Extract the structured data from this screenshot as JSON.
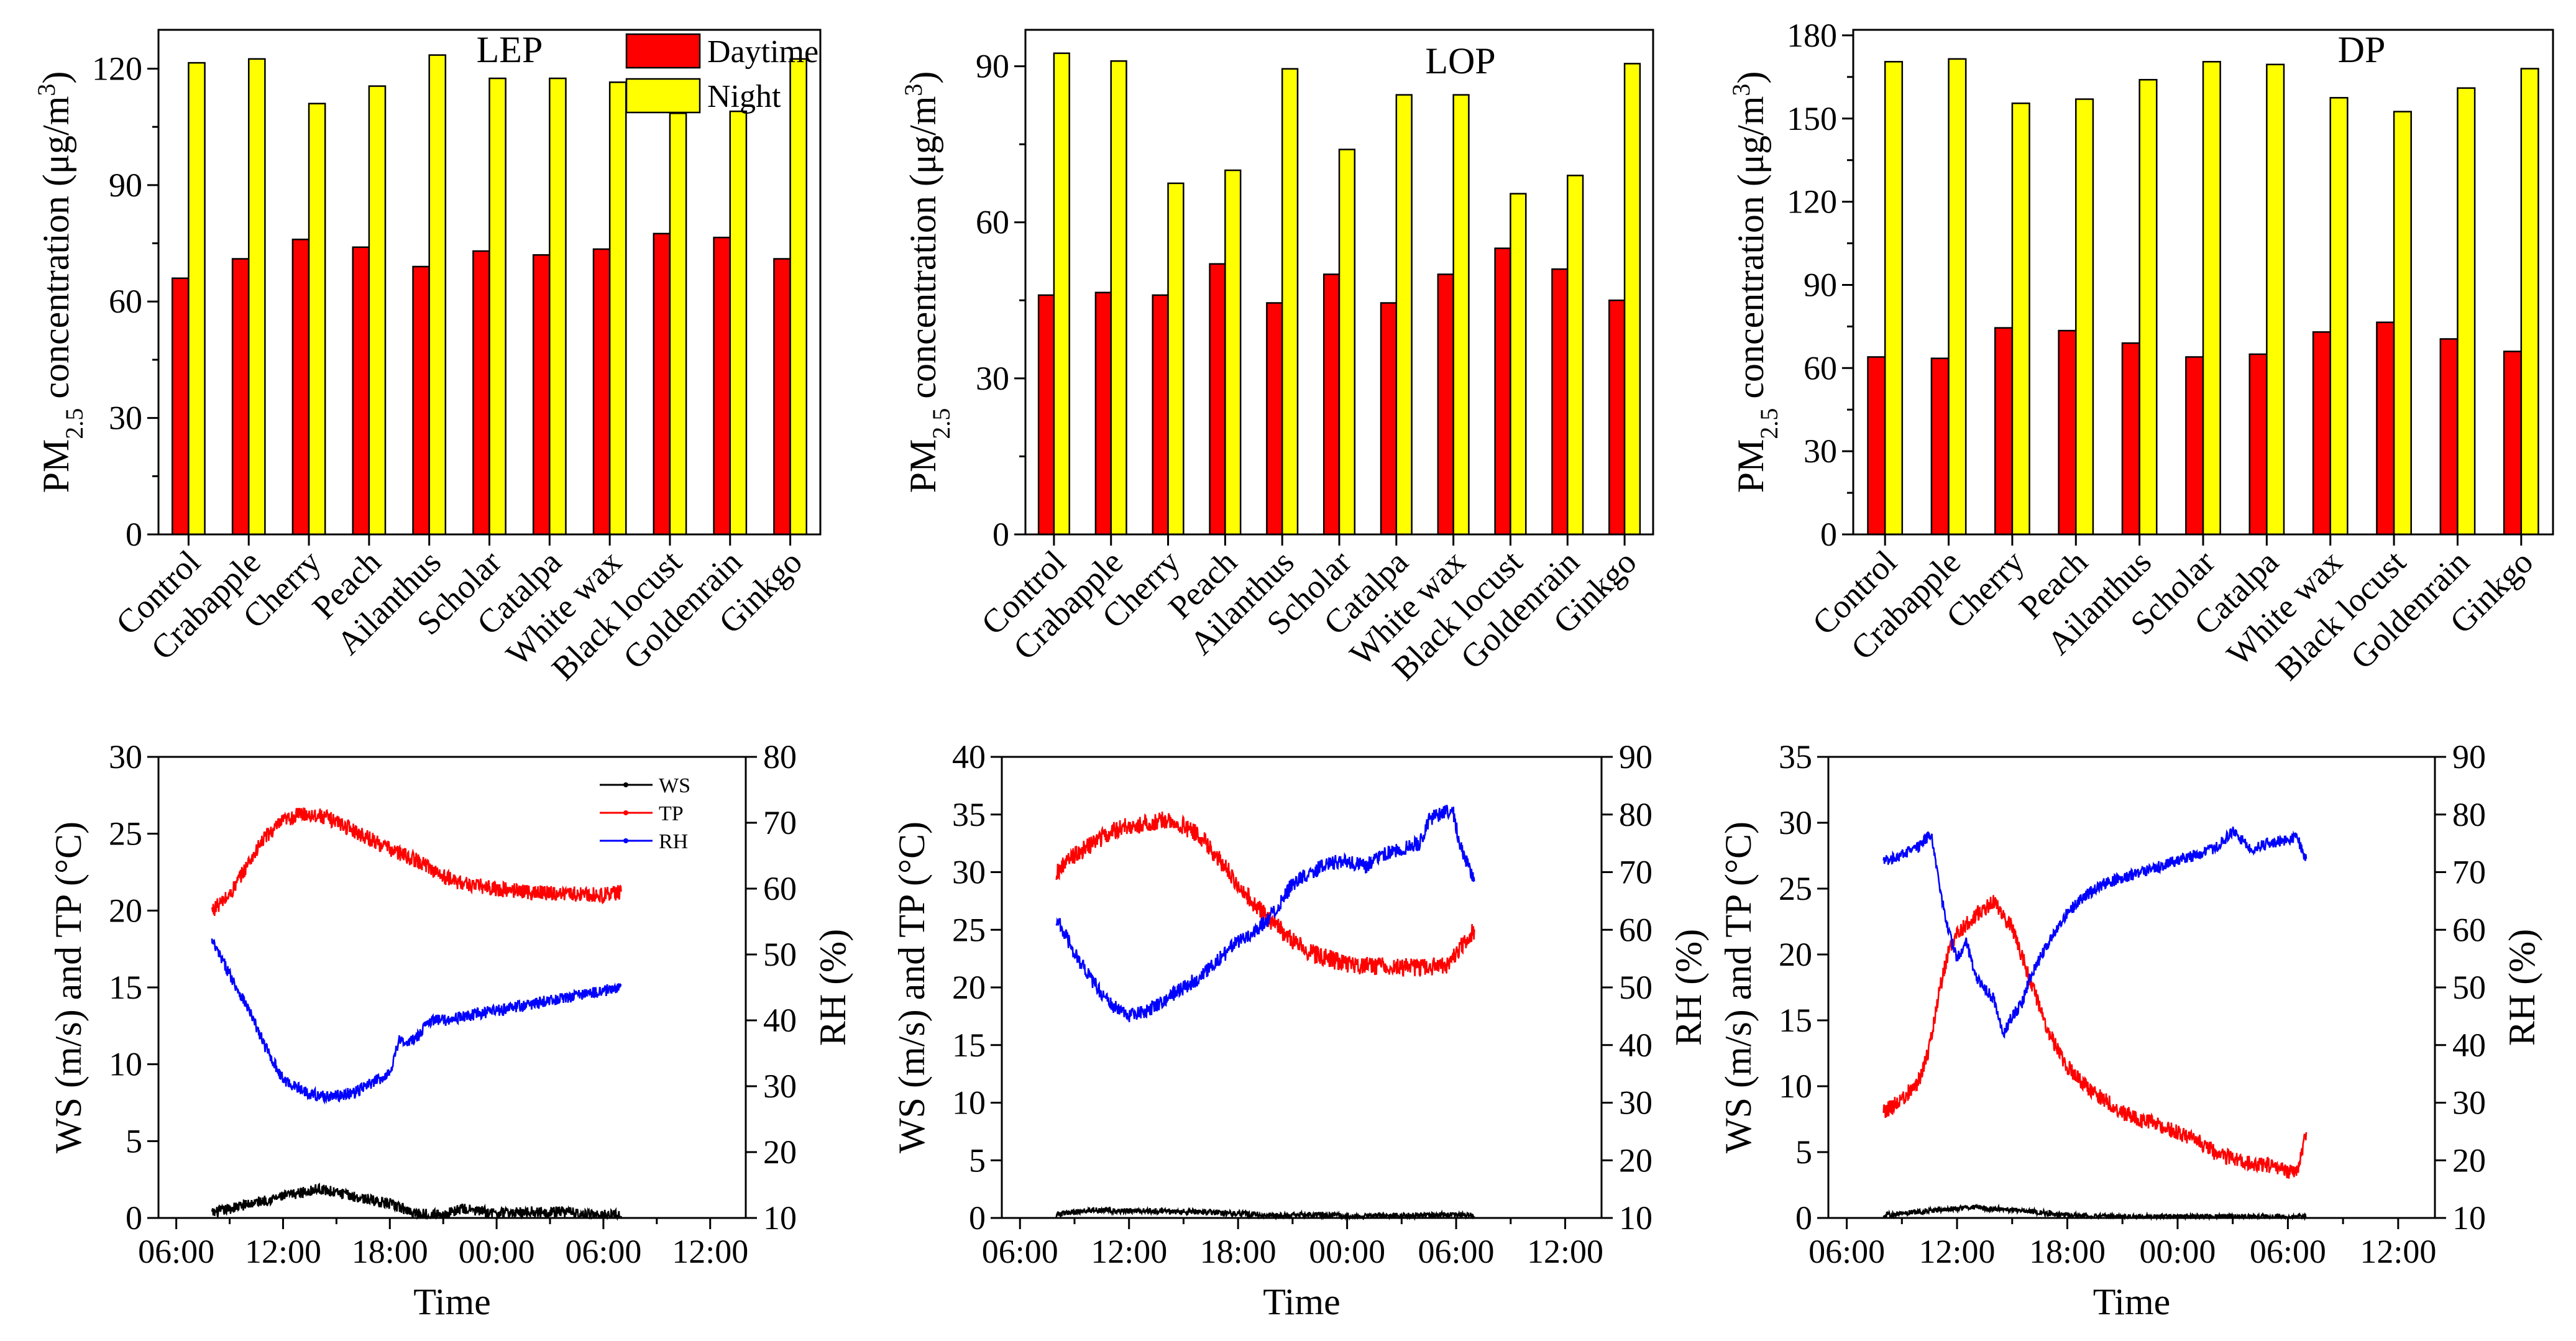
{
  "chart_data": [
    {
      "type": "bar",
      "title": "LEP",
      "ylabel_main": "PM",
      "ylabel_sub": "2.5",
      "ylabel_rest": " concentration (μg/m",
      "ylabel_sup": "3",
      "ylabel_end": ")",
      "ylim": [
        0,
        130
      ],
      "yticks": [
        "0",
        "30",
        "60",
        "90",
        "120"
      ],
      "categories": [
        "Control",
        "Crabapple",
        "Cherry",
        "Peach",
        "Ailanthus",
        "Scholar",
        "Catalpa",
        "White wax",
        "Black locust",
        "Goldenrain",
        "Ginkgo"
      ],
      "legend": [
        "Daytime",
        "Night"
      ],
      "series": [
        {
          "name": "Daytime",
          "color": "#ff0000",
          "values": [
            66,
            71,
            76,
            74,
            69,
            73,
            72,
            73.5,
            77.5,
            76.5,
            71
          ]
        },
        {
          "name": "Night",
          "color": "#ffff00",
          "values": [
            121.5,
            122.5,
            111,
            115.5,
            123.5,
            117.5,
            117.5,
            116.5,
            108.5,
            109,
            122.5
          ]
        }
      ]
    },
    {
      "type": "bar",
      "title": "LOP",
      "ylabel_main": "PM",
      "ylabel_sub": "2.5",
      "ylabel_rest": " concentration (μg/m",
      "ylabel_sup": "3",
      "ylabel_end": ")",
      "ylim": [
        0,
        97
      ],
      "yticks": [
        "0",
        "30",
        "60",
        "90"
      ],
      "categories": [
        "Control",
        "Crabapple",
        "Cherry",
        "Peach",
        "Ailanthus",
        "Scholar",
        "Catalpa",
        "White wax",
        "Black locust",
        "Goldenrain",
        "Ginkgo"
      ],
      "series": [
        {
          "name": "Daytime",
          "color": "#ff0000",
          "values": [
            46,
            46.5,
            46,
            52,
            44.5,
            50,
            44.5,
            50,
            55,
            51,
            45
          ]
        },
        {
          "name": "Night",
          "color": "#ffff00",
          "values": [
            92.5,
            91,
            67.5,
            70,
            89.5,
            74,
            84.5,
            84.5,
            65.5,
            69,
            90.5
          ]
        }
      ]
    },
    {
      "type": "bar",
      "title": "DP",
      "ylabel_main": "PM",
      "ylabel_sub": "2.5",
      "ylabel_rest": " concentration (μg/m",
      "ylabel_sup": "3",
      "ylabel_end": ")",
      "ylim": [
        0,
        182
      ],
      "yticks": [
        "0",
        "30",
        "60",
        "90",
        "120",
        "150",
        "180"
      ],
      "categories": [
        "Control",
        "Crabapple",
        "Cherry",
        "Peach",
        "Ailanthus",
        "Scholar",
        "Catalpa",
        "White wax",
        "Black locust",
        "Goldenrain",
        "Ginkgo"
      ],
      "series": [
        {
          "name": "Daytime",
          "color": "#ff0000",
          "values": [
            64,
            63.5,
            74.5,
            73.5,
            69,
            64,
            65,
            73,
            76.5,
            70.5,
            66
          ]
        },
        {
          "name": "Night",
          "color": "#ffff00",
          "values": [
            170.5,
            171.5,
            155.5,
            157,
            164,
            170.5,
            169.5,
            157.5,
            152.5,
            161,
            168
          ]
        }
      ]
    },
    {
      "type": "line",
      "xlabel": "Time",
      "ylabel": "WS (m/s) and TP (°C)",
      "y2label": "RH (%)",
      "xlim": [
        5,
        38
      ],
      "x_unit": "hours since 00:00 of day 1",
      "xticks": [
        "06:00",
        "12:00",
        "18:00",
        "00:00",
        "06:00",
        "12:00"
      ],
      "ylim": [
        0,
        30
      ],
      "yticks": [
        "0",
        "5",
        "10",
        "15",
        "20",
        "25",
        "30"
      ],
      "y2lim": [
        10,
        80
      ],
      "y2ticks": [
        "10",
        "20",
        "30",
        "40",
        "50",
        "60",
        "70",
        "80"
      ],
      "legend": [
        "WS",
        "TP",
        "RH"
      ],
      "series": [
        {
          "name": "WS",
          "axis": "left",
          "color": "#000000",
          "noise": 0.35,
          "points": [
            [
              8,
              0.3
            ],
            [
              10,
              0.9
            ],
            [
              12,
              1.4
            ],
            [
              14,
              1.9
            ],
            [
              16,
              1.4
            ],
            [
              18,
              0.9
            ],
            [
              19.5,
              0.3
            ],
            [
              21,
              0.2
            ],
            [
              22,
              0.6
            ],
            [
              24,
              0.3
            ],
            [
              26,
              0.4
            ],
            [
              28,
              0.4
            ],
            [
              29,
              0.2
            ],
            [
              31,
              0.2
            ]
          ]
        },
        {
          "name": "TP",
          "axis": "left",
          "color": "#ff0000",
          "noise": 0.5,
          "points": [
            [
              8,
              20
            ],
            [
              9,
              21
            ],
            [
              10,
              23
            ],
            [
              11,
              24.8
            ],
            [
              12,
              25.8
            ],
            [
              13,
              26.3
            ],
            [
              14,
              26.2
            ],
            [
              15,
              25.8
            ],
            [
              16,
              25.2
            ],
            [
              17,
              24.6
            ],
            [
              18,
              24
            ],
            [
              19,
              23.5
            ],
            [
              20,
              23
            ],
            [
              21,
              22.2
            ],
            [
              22,
              21.8
            ],
            [
              24,
              21.4
            ],
            [
              26,
              21.2
            ],
            [
              28,
              21.1
            ],
            [
              30,
              21
            ],
            [
              31,
              21.2
            ]
          ]
        },
        {
          "name": "RH",
          "axis": "right",
          "color": "#0000ff",
          "noise": 0.9,
          "points": [
            [
              8,
              52
            ],
            [
              9,
              47
            ],
            [
              10,
              42
            ],
            [
              11,
              36
            ],
            [
              12,
              31
            ],
            [
              13,
              29.5
            ],
            [
              14,
              28.5
            ],
            [
              15,
              28.5
            ],
            [
              16,
              29
            ],
            [
              17,
              30.5
            ],
            [
              18,
              32
            ],
            [
              18.5,
              37
            ],
            [
              19,
              36.5
            ],
            [
              19.8,
              38
            ],
            [
              20,
              40
            ],
            [
              21,
              40
            ],
            [
              22,
              40.5
            ],
            [
              24,
              41.5
            ],
            [
              26,
              42.5
            ],
            [
              28,
              43.5
            ],
            [
              30,
              44.5
            ],
            [
              31,
              45
            ]
          ]
        }
      ]
    },
    {
      "type": "line",
      "xlabel": "Time",
      "ylabel": "WS (m/s) and TP (°C)",
      "y2label": "RH (%)",
      "xlim": [
        5,
        38
      ],
      "x_unit": "hours since 00:00 of day 1",
      "xticks": [
        "06:00",
        "12:00",
        "18:00",
        "00:00",
        "06:00",
        "12:00"
      ],
      "ylim": [
        0,
        40
      ],
      "yticks": [
        "0",
        "5",
        "10",
        "15",
        "20",
        "25",
        "30",
        "35",
        "40"
      ],
      "y2lim": [
        10,
        90
      ],
      "y2ticks": [
        "10",
        "20",
        "30",
        "40",
        "50",
        "60",
        "70",
        "80",
        "90"
      ],
      "series": [
        {
          "name": "WS",
          "axis": "left",
          "color": "#000000",
          "noise": 0.25,
          "points": [
            [
              8,
              0.3
            ],
            [
              10,
              0.7
            ],
            [
              12,
              0.6
            ],
            [
              14,
              0.6
            ],
            [
              16,
              0.5
            ],
            [
              18,
              0.4
            ],
            [
              20,
              0.2
            ],
            [
              22,
              0.3
            ],
            [
              24,
              0.2
            ],
            [
              26,
              0.2
            ],
            [
              28,
              0.2
            ],
            [
              30,
              0.3
            ],
            [
              31,
              0.2
            ]
          ]
        },
        {
          "name": "TP",
          "axis": "left",
          "color": "#ff0000",
          "noise": 0.8,
          "points": [
            [
              8,
              30
            ],
            [
              9,
              31.5
            ],
            [
              10,
              32.5
            ],
            [
              11,
              33.5
            ],
            [
              12,
              34
            ],
            [
              13,
              34.2
            ],
            [
              14,
              34.5
            ],
            [
              15,
              34
            ],
            [
              16,
              33
            ],
            [
              17,
              31
            ],
            [
              18,
              29
            ],
            [
              19,
              27
            ],
            [
              20,
              25.5
            ],
            [
              21,
              24
            ],
            [
              22,
              23
            ],
            [
              24,
              22
            ],
            [
              26,
              21.8
            ],
            [
              28,
              21.7
            ],
            [
              29.5,
              22
            ],
            [
              30.5,
              24
            ],
            [
              31,
              25
            ]
          ]
        },
        {
          "name": "RH",
          "axis": "right",
          "color": "#0000ff",
          "noise": 1.3,
          "points": [
            [
              8,
              62
            ],
            [
              9,
              56
            ],
            [
              10,
              51
            ],
            [
              11,
              47
            ],
            [
              12,
              45
            ],
            [
              13,
              46
            ],
            [
              14,
              48
            ],
            [
              15,
              50
            ],
            [
              16,
              52
            ],
            [
              17,
              55
            ],
            [
              18,
              58
            ],
            [
              19,
              60
            ],
            [
              20,
              63
            ],
            [
              21,
              68
            ],
            [
              22,
              70
            ],
            [
              23,
              71.5
            ],
            [
              24,
              72
            ],
            [
              25,
              71
            ],
            [
              26,
              73
            ],
            [
              27,
              74
            ],
            [
              28,
              75
            ],
            [
              28.5,
              79
            ],
            [
              29,
              80
            ],
            [
              29.8,
              81
            ],
            [
              30.2,
              75
            ],
            [
              30.8,
              70
            ],
            [
              31,
              68
            ]
          ]
        }
      ]
    },
    {
      "type": "line",
      "xlabel": "Time",
      "ylabel": "WS (m/s) and TP (°C)",
      "y2label": "RH (%)",
      "xlim": [
        5,
        38
      ],
      "x_unit": "hours since 00:00 of day 1",
      "xticks": [
        "06:00",
        "12:00",
        "18:00",
        "00:00",
        "06:00",
        "12:00"
      ],
      "ylim": [
        0,
        35
      ],
      "yticks": [
        "0",
        "5",
        "10",
        "15",
        "20",
        "25",
        "30",
        "35"
      ],
      "y2lim": [
        10,
        90
      ],
      "y2ticks": [
        "10",
        "20",
        "30",
        "40",
        "50",
        "60",
        "70",
        "80",
        "90"
      ],
      "series": [
        {
          "name": "WS",
          "axis": "left",
          "color": "#000000",
          "noise": 0.2,
          "points": [
            [
              8,
              0.2
            ],
            [
              10,
              0.5
            ],
            [
              12,
              0.7
            ],
            [
              13,
              0.8
            ],
            [
              14,
              0.7
            ],
            [
              16,
              0.5
            ],
            [
              18,
              0.2
            ],
            [
              20,
              0.1
            ],
            [
              24,
              0.1
            ],
            [
              28,
              0.1
            ],
            [
              31,
              0.1
            ]
          ]
        },
        {
          "name": "TP",
          "axis": "left",
          "color": "#ff0000",
          "noise": 0.6,
          "points": [
            [
              8,
              8
            ],
            [
              9,
              9
            ],
            [
              10,
              10.5
            ],
            [
              10.5,
              13
            ],
            [
              11,
              17
            ],
            [
              11.5,
              20
            ],
            [
              12,
              21.5
            ],
            [
              13,
              23
            ],
            [
              14,
              24
            ],
            [
              15,
              22
            ],
            [
              16,
              18
            ],
            [
              17,
              14
            ],
            [
              18,
              11.5
            ],
            [
              19,
              10
            ],
            [
              20,
              9
            ],
            [
              21,
              8
            ],
            [
              22,
              7.5
            ],
            [
              23,
              7
            ],
            [
              24,
              6.5
            ],
            [
              25,
              6
            ],
            [
              26,
              5
            ],
            [
              27,
              4.5
            ],
            [
              28,
              4.2
            ],
            [
              29,
              4
            ],
            [
              30,
              3.5
            ],
            [
              30.5,
              3.5
            ],
            [
              31,
              6.5
            ]
          ]
        },
        {
          "name": "RH",
          "axis": "right",
          "color": "#0000ff",
          "noise": 1.0,
          "points": [
            [
              8,
              72
            ],
            [
              9,
              73
            ],
            [
              10,
              74.5
            ],
            [
              10.6,
              77
            ],
            [
              11,
              68
            ],
            [
              11.5,
              60
            ],
            [
              12,
              55
            ],
            [
              12.5,
              58
            ],
            [
              13,
              52
            ],
            [
              14,
              48
            ],
            [
              14.5,
              42
            ],
            [
              15,
              45
            ],
            [
              15.5,
              47
            ],
            [
              16,
              52
            ],
            [
              17,
              58
            ],
            [
              18,
              63
            ],
            [
              19,
              66
            ],
            [
              20,
              68
            ],
            [
              22,
              70
            ],
            [
              24,
              72
            ],
            [
              26,
              74
            ],
            [
              27,
              77
            ],
            [
              28,
              74
            ],
            [
              29,
              75
            ],
            [
              30,
              75.5
            ],
            [
              30.5,
              76
            ],
            [
              31,
              72
            ]
          ]
        }
      ]
    }
  ]
}
